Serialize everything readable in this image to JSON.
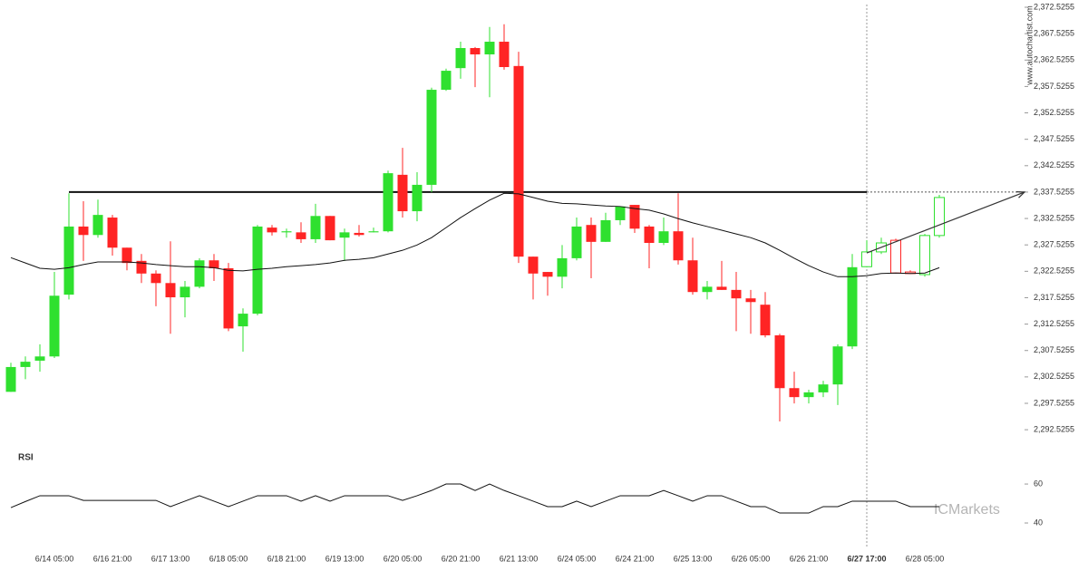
{
  "chart_data": {
    "type": "candlestick",
    "categories": [
      null,
      null,
      null,
      "6/14 05:00",
      null,
      null,
      null,
      "6/16 21:00",
      null,
      null,
      null,
      "6/17 13:00",
      null,
      null,
      null,
      "6/18 05:00",
      null,
      null,
      null,
      "6/18 21:00",
      null,
      null,
      null,
      "6/19 13:00",
      null,
      null,
      null,
      "6/20 05:00",
      null,
      null,
      null,
      "6/20 21:00",
      null,
      null,
      null,
      "6/21 13:00",
      null,
      null,
      null,
      "6/24 05:00",
      null,
      null,
      null,
      "6/24 21:00",
      null,
      null,
      null,
      "6/25 13:00",
      null,
      null,
      null,
      "6/26 05:00",
      null,
      null,
      null,
      "6/26 21:00",
      null,
      null,
      null,
      "6/27 17:00",
      null,
      null,
      null,
      "6/28 05:00",
      null
    ],
    "open": [
      2299.7,
      2304.4,
      2305.6,
      2306.4,
      2318.1,
      2331.0,
      2329.4,
      2332.7,
      2327.0,
      2324.5,
      2322.1,
      2320.3,
      2317.6,
      2319.6,
      2324.6,
      2323.1,
      2312.1,
      2314.5,
      2330.8,
      2329.9,
      2329.9,
      2328.6,
      2333.0,
      2328.9,
      2329.8,
      2329.9,
      2330.1,
      2340.8,
      2333.9,
      2338.9,
      2356.9,
      2361.0,
      2364.8,
      2363.6,
      2366.0,
      2361.4,
      2325.3,
      2322.4,
      2321.5,
      2325.0,
      2331.3,
      2328.1,
      2332.2,
      2335.1,
      2331.0,
      2327.9,
      2330.1,
      2324.6,
      2318.6,
      2319.6,
      2319.0,
      2317.4,
      2316.2,
      2310.4,
      2300.4,
      2298.7,
      2299.6,
      2301.1,
      2308.3,
      2323.4,
      2326.2,
      2328.4,
      2322.4,
      2321.9,
      2329.3
    ],
    "high": [
      2305.2,
      2306.4,
      2308.7,
      2322.4,
      2337.3,
      2335.8,
      2336.1,
      2333.2,
      2327.0,
      2325.8,
      2322.7,
      2328.2,
      2320.7,
      2325.0,
      2325.8,
      2324.1,
      2315.5,
      2331.3,
      2331.3,
      2330.6,
      2331.8,
      2335.3,
      2333.0,
      2330.6,
      2331.3,
      2330.8,
      2341.6,
      2345.9,
      2341.3,
      2357.3,
      2360.9,
      2366.0,
      2365.0,
      2368.8,
      2369.3,
      2364.1,
      2325.3,
      2322.4,
      2327.5,
      2332.7,
      2332.7,
      2333.6,
      2334.8,
      2335.1,
      2331.3,
      2332.7,
      2337.3,
      2328.9,
      2320.7,
      2324.5,
      2322.4,
      2319.0,
      2318.6,
      2310.7,
      2303.5,
      2300.1,
      2301.8,
      2308.7,
      2325.8,
      2328.4,
      2328.9,
      2328.7,
      2322.7,
      2329.6,
      2337.0
    ],
    "low": [
      2299.7,
      2302.1,
      2303.5,
      2306.1,
      2317.2,
      2324.5,
      2328.9,
      2325.5,
      2322.7,
      2320.3,
      2315.9,
      2310.7,
      2313.8,
      2319.3,
      2320.7,
      2311.2,
      2307.3,
      2314.2,
      2329.3,
      2328.9,
      2327.9,
      2327.9,
      2328.4,
      2324.5,
      2329.1,
      2329.9,
      2329.9,
      2332.7,
      2332.0,
      2337.5,
      2356.7,
      2359.0,
      2357.4,
      2355.5,
      2360.7,
      2324.1,
      2317.2,
      2317.9,
      2319.3,
      2324.6,
      2321.2,
      2328.1,
      2331.3,
      2329.8,
      2323.1,
      2327.5,
      2323.8,
      2318.1,
      2317.2,
      2319.0,
      2311.2,
      2310.7,
      2310.0,
      2294.1,
      2297.5,
      2297.5,
      2298.7,
      2297.2,
      2307.8,
      2323.3,
      2325.8,
      2322.1,
      2322.1,
      2321.5,
      2328.9
    ],
    "close": [
      2304.4,
      2305.4,
      2306.4,
      2317.9,
      2331.0,
      2329.4,
      2333.2,
      2327.0,
      2324.1,
      2322.1,
      2320.3,
      2317.6,
      2319.6,
      2324.6,
      2323.1,
      2311.7,
      2314.5,
      2331.0,
      2329.9,
      2330.1,
      2328.6,
      2333.0,
      2328.4,
      2329.9,
      2329.4,
      2330.1,
      2341.1,
      2333.9,
      2338.9,
      2356.9,
      2360.5,
      2364.8,
      2363.6,
      2366.0,
      2361.2,
      2325.3,
      2322.1,
      2321.5,
      2325.0,
      2331.0,
      2328.1,
      2332.2,
      2334.8,
      2330.6,
      2327.9,
      2330.1,
      2324.6,
      2318.6,
      2319.6,
      2319.0,
      2317.4,
      2316.7,
      2310.4,
      2300.4,
      2298.7,
      2299.6,
      2301.1,
      2308.3,
      2323.3,
      2326.2,
      2327.9,
      2322.2,
      2322.1,
      2329.3,
      2336.5
    ],
    "ma": [
      2325.1,
      2324.1,
      2323.1,
      2322.9,
      2323.2,
      2323.8,
      2324.3,
      2324.3,
      2324.3,
      2324.1,
      2323.8,
      2323.6,
      2323.4,
      2323.4,
      2323.2,
      2322.7,
      2322.6,
      2322.9,
      2323.1,
      2323.4,
      2323.6,
      2323.8,
      2324.1,
      2324.6,
      2324.8,
      2325.1,
      2325.8,
      2326.5,
      2327.5,
      2328.9,
      2330.8,
      2332.7,
      2334.4,
      2336.0,
      2337.3,
      2337.2,
      2336.5,
      2335.8,
      2335.4,
      2335.3,
      2335.1,
      2334.9,
      2334.8,
      2334.4,
      2334.1,
      2333.4,
      2332.5,
      2331.7,
      2331.0,
      2330.3,
      2329.6,
      2328.9,
      2327.9,
      2326.5,
      2325.0,
      2323.6,
      2322.4,
      2321.5,
      2321.5,
      2321.7,
      2322.1,
      2322.2,
      2322.1,
      2322.2,
      2323.2
    ],
    "up_color": "#2fe02f",
    "down_color": "#ff2424",
    "forecast_from": 59,
    "level": 2337.5255,
    "trend_arrow": [
      2326.0,
      2337.5255
    ],
    "ylim": [
      2289.8,
      2373.9
    ],
    "yticks": [
      {
        "value": 2372.5255,
        "label": "2,372.5255"
      },
      {
        "value": 2367.5255,
        "label": "2,367.5255"
      },
      {
        "value": 2362.5255,
        "label": "2,362.5255"
      },
      {
        "value": 2357.5255,
        "label": "2,357.5255"
      },
      {
        "value": 2352.5255,
        "label": "2,352.5255"
      },
      {
        "value": 2347.5255,
        "label": "2,347.5255"
      },
      {
        "value": 2342.5255,
        "label": "2,342.5255"
      },
      {
        "value": 2337.5255,
        "label": "2,337.5255"
      },
      {
        "value": 2332.5255,
        "label": "2,332.5255"
      },
      {
        "value": 2327.5255,
        "label": "2,327.5255"
      },
      {
        "value": 2322.5255,
        "label": "2,322.5255"
      },
      {
        "value": 2317.5255,
        "label": "2,317.5255"
      },
      {
        "value": 2312.5255,
        "label": "2,312.5255"
      },
      {
        "value": 2307.5255,
        "label": "2,307.5255"
      },
      {
        "value": 2302.5255,
        "label": "2,302.5255"
      },
      {
        "value": 2297.5255,
        "label": "2,297.5255"
      },
      {
        "value": 2292.5255,
        "label": "2,292.5255"
      }
    ],
    "rsi": {
      "label": "RSI",
      "ylim": [
        29.3,
        71.2
      ],
      "yticks": [
        60,
        40
      ],
      "values": [
        47.9,
        51.0,
        54.0,
        54.0,
        54.0,
        51.6,
        51.6,
        51.6,
        51.6,
        51.6,
        51.6,
        48.4,
        51.2,
        54.0,
        51.2,
        48.4,
        51.2,
        54.0,
        54.0,
        54.0,
        51.2,
        54.0,
        51.2,
        54.0,
        54.0,
        54.0,
        54.0,
        51.6,
        54.0,
        56.7,
        60,
        60,
        56.7,
        60,
        56.7,
        54.0,
        51.2,
        48.4,
        48.4,
        51.2,
        48.4,
        51.2,
        54.0,
        54.0,
        54.0,
        56.7,
        54.0,
        51.2,
        54.0,
        54.0,
        51.2,
        48.4,
        48.4,
        45.1,
        45.1,
        45.1,
        48.4,
        48.4,
        51.2,
        51.2,
        51.2,
        51.2,
        48.4,
        48.4,
        48.4
      ]
    },
    "source": "www.autochartist.com",
    "watermark": "ICMarkets"
  }
}
